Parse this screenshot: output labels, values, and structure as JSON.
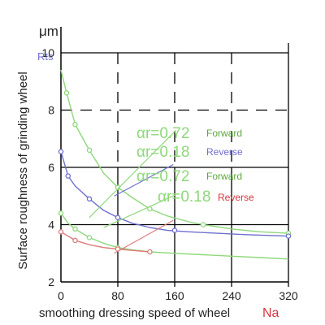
{
  "chart_data": {
    "type": "line",
    "unit_label": "μm",
    "y_symbol": "Rts",
    "ylabel": "Surface roughness of grinding wheel",
    "xlabel": "smoothing dressing speed of wheel",
    "x_symbol": "Na",
    "xlim": [
      0,
      320
    ],
    "ylim": [
      2,
      10
    ],
    "x_ticks": [
      "0",
      "80",
      "160",
      "240",
      "320"
    ],
    "y_ticks": [
      "2",
      "4",
      "6",
      "8",
      "10"
    ],
    "grid": true,
    "colors": {
      "green": "#8ed87a",
      "blue": "#6f6fcf",
      "red": "#e07b7b",
      "label_red": "#d8363f",
      "axis": "#000000"
    },
    "legend": [
      {
        "ar_text": "αr=0.72",
        "direction": "Forward",
        "ar_color": "#8ed87a",
        "dir_color": "#5aa83a"
      },
      {
        "ar_text": "αr=0.18",
        "direction": "Reverse",
        "ar_color": "#8ed87a",
        "dir_color": "#6f6fcf"
      },
      {
        "ar_text": "αr=0.72",
        "direction": "Forward",
        "ar_color": "#8ed87a",
        "dir_color": "#5aa83a"
      },
      {
        "ar_text": "αr=0.18",
        "direction": "Reverse",
        "ar_color": "#8ed87a",
        "dir_color": "#d8363f"
      }
    ],
    "series": [
      {
        "color": "#8ed87a",
        "x": [
          0,
          8,
          20,
          40,
          60,
          80,
          100,
          125,
          150,
          180,
          200,
          240,
          280,
          320
        ],
        "y": [
          9.4,
          8.6,
          7.5,
          6.6,
          5.8,
          5.3,
          4.95,
          4.55,
          4.3,
          4.1,
          4.0,
          3.85,
          3.75,
          3.7
        ],
        "marker_x": [
          8,
          20,
          40,
          80,
          125,
          200,
          320
        ],
        "marker_y": [
          8.6,
          7.5,
          6.6,
          5.3,
          4.55,
          4.0,
          3.7
        ]
      },
      {
        "color": "#6f6fcf",
        "x": [
          0,
          10,
          20,
          40,
          60,
          80,
          100,
          125,
          150,
          180,
          220,
          260,
          320
        ],
        "y": [
          6.55,
          5.7,
          5.35,
          4.9,
          4.5,
          4.25,
          4.05,
          3.9,
          3.8,
          3.75,
          3.7,
          3.65,
          3.6
        ],
        "marker_x": [
          0,
          10,
          40,
          80,
          160,
          320
        ],
        "marker_y": [
          6.55,
          5.7,
          4.9,
          4.25,
          3.8,
          3.6
        ]
      },
      {
        "color": "#8ed87a",
        "x": [
          0,
          10,
          20,
          40,
          60,
          80,
          100,
          125,
          160,
          200,
          240,
          280,
          320
        ],
        "y": [
          4.4,
          4.05,
          3.85,
          3.55,
          3.35,
          3.2,
          3.12,
          3.05,
          3.0,
          2.95,
          2.9,
          2.85,
          2.8
        ],
        "marker_x": [
          0,
          20,
          40,
          80,
          125
        ],
        "marker_y": [
          4.4,
          3.85,
          3.55,
          3.2,
          3.05
        ]
      },
      {
        "color": "#e07b7b",
        "x": [
          0,
          10,
          20,
          40,
          60,
          80,
          100,
          125
        ],
        "y": [
          3.75,
          3.6,
          3.45,
          3.3,
          3.2,
          3.15,
          3.1,
          3.05
        ],
        "marker_x": [
          0,
          20,
          80,
          125
        ],
        "marker_y": [
          3.75,
          3.45,
          3.15,
          3.05
        ]
      }
    ],
    "leaders": [
      {
        "from_x": 40,
        "from_y": 4.25,
        "to_x": 162,
        "to_y": 7.3
      },
      {
        "from_x": 75,
        "from_y": 5.0,
        "to_x": 158,
        "to_y": 6.1
      },
      {
        "from_x": 60,
        "from_y": 3.9,
        "to_x": 162,
        "to_y": 5.05
      },
      {
        "from_x": 75,
        "from_y": 3.0,
        "to_x": 158,
        "to_y": 4.15
      }
    ]
  }
}
